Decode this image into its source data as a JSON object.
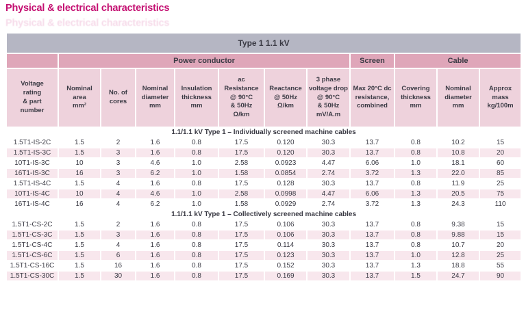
{
  "page": {
    "title": "Physical & electrical characteristics"
  },
  "colors": {
    "title": "#c40f71",
    "header_bar_bg": "#b5b6c3",
    "group_header_bg": "#dfa6b9",
    "column_header_bg": "#eed2dc",
    "section_header_bg": "#b8b9c6",
    "row_alt_bg": "#f8e7ed",
    "text": "#3a3a44"
  },
  "table": {
    "title": "Type 1  1.1 kV",
    "groups": [
      {
        "label": "",
        "span": 1
      },
      {
        "label": "Power conductor",
        "span": 7
      },
      {
        "label": "Screen",
        "span": 1
      },
      {
        "label": "Cable",
        "span": 3
      }
    ],
    "columns": [
      "Voltage\nrating\n& part\nnumber",
      "Nominal\narea\nmm²",
      "No. of\ncores",
      "Nominal\ndiameter\nmm",
      "Insulation\nthickness\nmm",
      "ac\nResistance\n@ 90°C\n& 50Hz\nΩ/km",
      "Reactance\n@ 50Hz\nΩ/km",
      "3 phase\nvoltage drop\n@ 90°C\n& 50Hz\nmV/A.m",
      "Max 20°C dc\nresistance,\ncombined",
      "Covering\nthickness\nmm",
      "Nominal\ndiameter\nmm",
      "Approx\nmass\nkg/100m"
    ],
    "sections": [
      {
        "label": "1.1/1.1 kV  Type 1 – Individually screened machine cables",
        "rows": [
          [
            "1.5T1-IS-2C",
            "1.5",
            "2",
            "1.6",
            "0.8",
            "17.5",
            "0.120",
            "30.3",
            "13.7",
            "0.8",
            "10.2",
            "15"
          ],
          [
            "1.5T1-IS-3C",
            "1.5",
            "3",
            "1.6",
            "0.8",
            "17.5",
            "0.120",
            "30.3",
            "13.7",
            "0.8",
            "10.8",
            "20"
          ],
          [
            "10T1-IS-3C",
            "10",
            "3",
            "4.6",
            "1.0",
            "2.58",
            "0.0923",
            "4.47",
            "6.06",
            "1.0",
            "18.1",
            "60"
          ],
          [
            "16T1-IS-3C",
            "16",
            "3",
            "6.2",
            "1.0",
            "1.58",
            "0.0854",
            "2.74",
            "3.72",
            "1.3",
            "22.0",
            "85"
          ],
          [
            "1.5T1-IS-4C",
            "1.5",
            "4",
            "1.6",
            "0.8",
            "17.5",
            "0.128",
            "30.3",
            "13.7",
            "0.8",
            "11.9",
            "25"
          ],
          [
            "10T1-IS-4C",
            "10",
            "4",
            "4.6",
            "1.0",
            "2.58",
            "0.0998",
            "4.47",
            "6.06",
            "1.3",
            "20.5",
            "75"
          ],
          [
            "16T1-IS-4C",
            "16",
            "4",
            "6.2",
            "1.0",
            "1.58",
            "0.0929",
            "2.74",
            "3.72",
            "1.3",
            "24.3",
            "110"
          ]
        ]
      },
      {
        "label": "1.1/1.1 kV  Type 1 – Collectively screened machine cables",
        "rows": [
          [
            "1.5T1-CS-2C",
            "1.5",
            "2",
            "1.6",
            "0.8",
            "17.5",
            "0.106",
            "30.3",
            "13.7",
            "0.8",
            "9.38",
            "15"
          ],
          [
            "1.5T1-CS-3C",
            "1.5",
            "3",
            "1.6",
            "0.8",
            "17.5",
            "0.106",
            "30.3",
            "13.7",
            "0.8",
            "9.88",
            "15"
          ],
          [
            "1.5T1-CS-4C",
            "1.5",
            "4",
            "1.6",
            "0.8",
            "17.5",
            "0.114",
            "30.3",
            "13.7",
            "0.8",
            "10.7",
            "20"
          ],
          [
            "1.5T1-CS-6C",
            "1.5",
            "6",
            "1.6",
            "0.8",
            "17.5",
            "0.123",
            "30.3",
            "13.7",
            "1.0",
            "12.8",
            "25"
          ],
          [
            "1.5T1-CS-16C",
            "1.5",
            "16",
            "1.6",
            "0.8",
            "17.5",
            "0.152",
            "30.3",
            "13.7",
            "1.3",
            "18.8",
            "55"
          ],
          [
            "1.5T1-CS-30C",
            "1.5",
            "30",
            "1.6",
            "0.8",
            "17.5",
            "0.169",
            "30.3",
            "13.7",
            "1.5",
            "24.7",
            "90"
          ]
        ]
      }
    ]
  }
}
